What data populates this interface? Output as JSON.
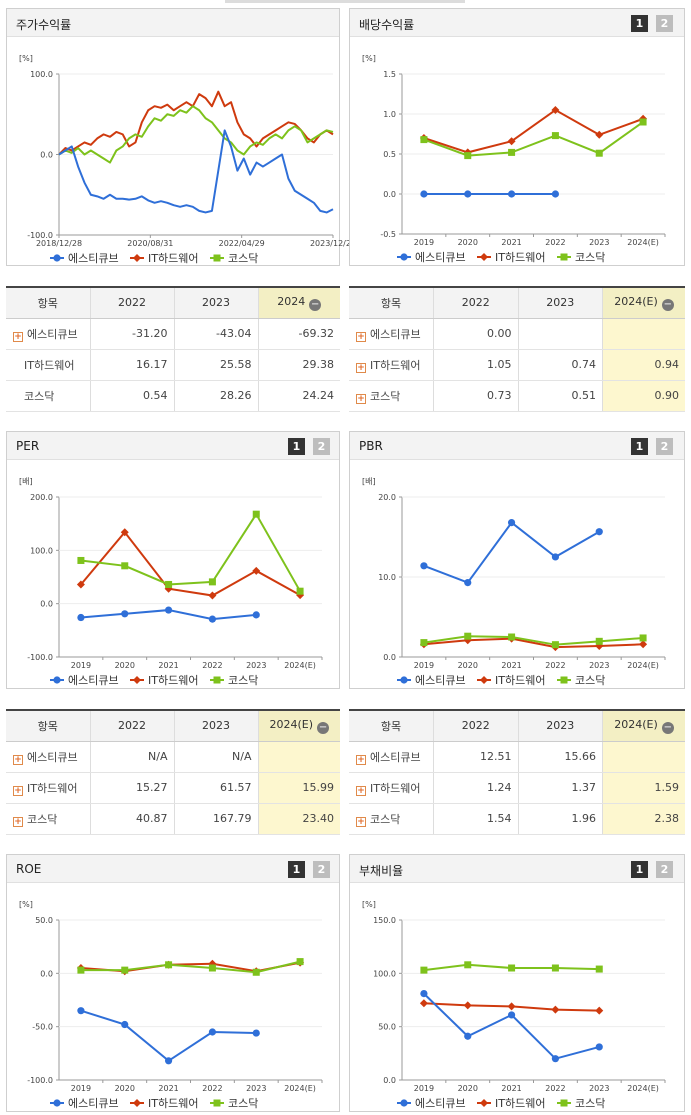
{
  "colors": {
    "s1": "#2f6fd8",
    "s2": "#cf3a0e",
    "s3": "#7ec21c"
  },
  "pager": {
    "p1": "1",
    "p2": "2"
  },
  "panels": [
    {
      "title": "주가수익률",
      "unit": "[%]",
      "pager": false,
      "legend": [
        "에스티큐브",
        "IT하드웨어",
        "코스닥"
      ]
    },
    {
      "title": "배당수익률",
      "unit": "[%]",
      "pager": true,
      "legend": [
        "에스티큐브",
        "IT하드웨어",
        "코스닥"
      ]
    },
    {
      "title": "PER",
      "unit": "[배]",
      "pager": true,
      "legend": [
        "에스티큐브",
        "IT하드웨어",
        "코스닥"
      ]
    },
    {
      "title": "PBR",
      "unit": "[배]",
      "pager": true,
      "legend": [
        "에스티큐브",
        "IT하드웨어",
        "코스닥"
      ]
    },
    {
      "title": "ROE",
      "unit": "[%]",
      "pager": true,
      "legend": [
        "에스티큐브",
        "IT하드웨어",
        "코스닥"
      ]
    },
    {
      "title": "부채비율",
      "unit": "[%]",
      "pager": true,
      "legend": [
        "에스티큐브",
        "IT하드웨어",
        "코스닥"
      ]
    }
  ],
  "tables": [
    {
      "head": [
        "항목",
        "2022",
        "2023",
        "2024"
      ],
      "minus": "−",
      "rows": [
        {
          "name": "에스티큐브",
          "plus": true,
          "vals": [
            "-31.20",
            "-43.04",
            "-69.32"
          ]
        },
        {
          "name": "IT하드웨어",
          "plus": false,
          "vals": [
            "16.17",
            "25.58",
            "29.38"
          ]
        },
        {
          "name": "코스닥",
          "plus": false,
          "vals": [
            "0.54",
            "28.26",
            "24.24"
          ]
        }
      ]
    },
    {
      "head": [
        "항목",
        "2022",
        "2023",
        "2024(E)"
      ],
      "minus": "−",
      "rows": [
        {
          "name": "에스티큐브",
          "plus": true,
          "vals": [
            "0.00",
            "",
            ""
          ]
        },
        {
          "name": "IT하드웨어",
          "plus": true,
          "vals": [
            "1.05",
            "0.74",
            "0.94"
          ]
        },
        {
          "name": "코스닥",
          "plus": true,
          "vals": [
            "0.73",
            "0.51",
            "0.90"
          ]
        }
      ]
    },
    {
      "head": [
        "항목",
        "2022",
        "2023",
        "2024(E)"
      ],
      "minus": "−",
      "rows": [
        {
          "name": "에스티큐브",
          "plus": true,
          "vals": [
            "N/A",
            "N/A",
            ""
          ]
        },
        {
          "name": "IT하드웨어",
          "plus": true,
          "vals": [
            "15.27",
            "61.57",
            "15.99"
          ]
        },
        {
          "name": "코스닥",
          "plus": true,
          "vals": [
            "40.87",
            "167.79",
            "23.40"
          ]
        }
      ]
    },
    {
      "head": [
        "항목",
        "2022",
        "2023",
        "2024(E)"
      ],
      "minus": "−",
      "rows": [
        {
          "name": "에스티큐브",
          "plus": true,
          "vals": [
            "12.51",
            "15.66",
            ""
          ]
        },
        {
          "name": "IT하드웨어",
          "plus": true,
          "vals": [
            "1.24",
            "1.37",
            "1.59"
          ]
        },
        {
          "name": "코스닥",
          "plus": true,
          "vals": [
            "1.54",
            "1.96",
            "2.38"
          ]
        }
      ]
    }
  ],
  "chart_data": [
    {
      "type": "line",
      "title": "주가수익률",
      "ylim": [
        -100,
        100
      ],
      "yticks": [
        "100.0",
        "0.0",
        "-100.0"
      ],
      "x_labels": [
        "2018/12/28",
        "2020/08/31",
        "2022/04/29",
        "2023/12/28"
      ],
      "series": [
        {
          "name": "에스티큐브",
          "values": [
            0,
            5,
            10,
            -15,
            -35,
            -50,
            -52,
            -55,
            -50,
            -55,
            -55,
            -56,
            -55,
            -52,
            -57,
            -60,
            -58,
            -60,
            -63,
            -65,
            -63,
            -65,
            -70,
            -72,
            -70,
            -20,
            30,
            10,
            -20,
            -5,
            -25,
            -10,
            -15,
            -10,
            -5,
            0,
            -30,
            -45,
            -50,
            -55,
            -60,
            -70,
            -72,
            -68
          ]
        },
        {
          "name": "IT하드웨어",
          "values": [
            0,
            8,
            5,
            10,
            15,
            12,
            20,
            25,
            22,
            28,
            25,
            10,
            15,
            40,
            55,
            60,
            58,
            62,
            55,
            60,
            65,
            60,
            75,
            70,
            60,
            78,
            60,
            65,
            40,
            25,
            20,
            10,
            20,
            25,
            30,
            35,
            40,
            38,
            30,
            20,
            15,
            25,
            30,
            25
          ]
        },
        {
          "name": "코스닥",
          "values": [
            0,
            5,
            2,
            8,
            0,
            5,
            0,
            -5,
            -10,
            5,
            10,
            20,
            25,
            22,
            35,
            45,
            42,
            50,
            48,
            55,
            52,
            60,
            55,
            45,
            40,
            30,
            20,
            15,
            5,
            0,
            10,
            15,
            12,
            20,
            25,
            20,
            30,
            35,
            30,
            15,
            20,
            25,
            30,
            28
          ]
        }
      ]
    },
    {
      "type": "line",
      "title": "배당수익률",
      "ylim": [
        -0.5,
        1.5
      ],
      "yticks": [
        "1.5",
        "1.0",
        "0.5",
        "0.0",
        "-0.5"
      ],
      "categories": [
        "2019",
        "2020",
        "2021",
        "2022",
        "2023",
        "2024(E)"
      ],
      "series": [
        {
          "name": "에스티큐브",
          "values": [
            0,
            0,
            0,
            0,
            null,
            null
          ]
        },
        {
          "name": "IT하드웨어",
          "values": [
            0.7,
            0.52,
            0.66,
            1.05,
            0.74,
            0.94
          ]
        },
        {
          "name": "코스닥",
          "values": [
            0.68,
            0.48,
            0.52,
            0.73,
            0.51,
            0.9
          ]
        }
      ]
    },
    {
      "type": "line",
      "title": "PER",
      "ylim": [
        -100,
        200
      ],
      "yticks": [
        "200.0",
        "100.0",
        "0.0",
        "-100.0"
      ],
      "categories": [
        "2019",
        "2020",
        "2021",
        "2022",
        "2023",
        "2024(E)"
      ],
      "series": [
        {
          "name": "에스티큐브",
          "values": [
            -26,
            -19,
            -12,
            -29,
            -21,
            null
          ]
        },
        {
          "name": "IT하드웨어",
          "values": [
            36,
            134,
            28,
            15.27,
            61.57,
            15.99
          ]
        },
        {
          "name": "코스닥",
          "values": [
            81,
            71,
            36,
            40.87,
            167.79,
            23.4
          ]
        }
      ]
    },
    {
      "type": "line",
      "title": "PBR",
      "ylim": [
        0,
        20
      ],
      "yticks": [
        "20.0",
        "10.0",
        "0.0"
      ],
      "categories": [
        "2019",
        "2020",
        "2021",
        "2022",
        "2023",
        "2024(E)"
      ],
      "series": [
        {
          "name": "에스티큐브",
          "values": [
            11.4,
            9.3,
            16.8,
            12.51,
            15.66,
            null
          ]
        },
        {
          "name": "IT하드웨어",
          "values": [
            1.6,
            2.1,
            2.3,
            1.24,
            1.37,
            1.59
          ]
        },
        {
          "name": "코스닥",
          "values": [
            1.8,
            2.6,
            2.5,
            1.54,
            1.96,
            2.38
          ]
        }
      ]
    },
    {
      "type": "line",
      "title": "ROE",
      "ylim": [
        -100,
        50
      ],
      "yticks": [
        "50.0",
        "0.0",
        "-50.0",
        "-100.0"
      ],
      "categories": [
        "2019",
        "2020",
        "2021",
        "2022",
        "2023",
        "2024(E)"
      ],
      "series": [
        {
          "name": "에스티큐브",
          "values": [
            -35,
            -48,
            -82,
            -55,
            -56,
            null
          ]
        },
        {
          "name": "IT하드웨어",
          "values": [
            5,
            2,
            8,
            9,
            2,
            10
          ]
        },
        {
          "name": "코스닥",
          "values": [
            3,
            3,
            8,
            5,
            1,
            11
          ]
        }
      ]
    },
    {
      "type": "line",
      "title": "부채비율",
      "ylim": [
        0,
        150
      ],
      "yticks": [
        "150.0",
        "100.0",
        "50.0",
        "0.0"
      ],
      "categories": [
        "2019",
        "2020",
        "2021",
        "2022",
        "2023",
        "2024(E)"
      ],
      "series": [
        {
          "name": "에스티큐브",
          "values": [
            81,
            41,
            61,
            20,
            31,
            null
          ]
        },
        {
          "name": "IT하드웨어",
          "values": [
            72,
            70,
            69,
            66,
            65,
            null
          ]
        },
        {
          "name": "코스닥",
          "values": [
            103,
            108,
            105,
            105,
            104,
            null
          ]
        }
      ]
    }
  ]
}
